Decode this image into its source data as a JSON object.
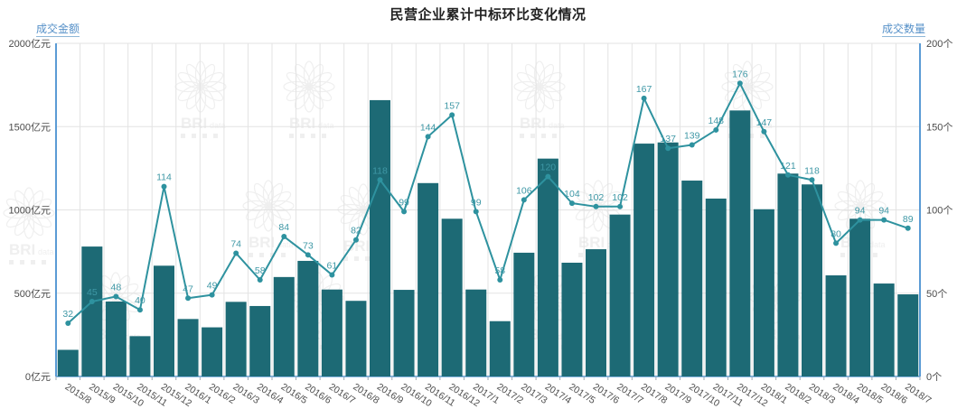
{
  "title": "民营企业累计中标环比变化情况",
  "watermark": {
    "brand": "BRI",
    "sub": "data"
  },
  "colors": {
    "bar": "#1d6a75",
    "line": "#2e929f",
    "point_label": "#3f98a6",
    "axis_line": "#5b9bd5",
    "grid_line": "#e3e3e3",
    "tick_text": "#4a4a4a",
    "title_text": "#222222",
    "watermark": "#e2e2e2"
  },
  "chart_data": {
    "type": "bar",
    "subtype": "combo-bar-line-dual-axis",
    "title": "民营企业累计中标环比变化情况",
    "grid": true,
    "categories": [
      "2015/8",
      "2015/9",
      "2015/10",
      "2015/11",
      "2015/12",
      "2016/1",
      "2016/2",
      "2016/3",
      "2016/4",
      "2016/5",
      "2016/6",
      "2016/7",
      "2016/8",
      "2016/9",
      "2016/10",
      "2016/11",
      "2016/12",
      "2017/1",
      "2017/2",
      "2017/3",
      "2017/4",
      "2017/5",
      "2017/6",
      "2017/7",
      "2017/8",
      "2017/9",
      "2017/10",
      "2017/11",
      "2017/12",
      "2018/1",
      "2018/2",
      "2018/3",
      "2018/4",
      "2018/5",
      "2018/6",
      "2018/7"
    ],
    "series": [
      {
        "name": "成交金额",
        "type": "bar",
        "axis": "left",
        "unit": "亿元",
        "values": [
          160,
          780,
          450,
          242,
          665,
          345,
          295,
          448,
          423,
          597,
          694,
          522,
          454,
          1659,
          520,
          1161,
          947,
          522,
          332,
          743,
          1308,
          683,
          764,
          972,
          1398,
          1405,
          1176,
          1068,
          1597,
          1004,
          1218,
          1153,
          607,
          947,
          558,
          493
        ],
        "values_are_estimated_from_pixels": true
      },
      {
        "name": "成交数量",
        "type": "line",
        "axis": "right",
        "unit": "个",
        "show_point_labels": true,
        "values": [
          32,
          45,
          48,
          40,
          114,
          47,
          49,
          74,
          58,
          84,
          73,
          61,
          82,
          118,
          99,
          144,
          157,
          99,
          58,
          106,
          120,
          104,
          102,
          102,
          167,
          137,
          139,
          148,
          176,
          147,
          121,
          118,
          80,
          94,
          94,
          89
        ]
      }
    ],
    "left_axis": {
      "name": "成交金额",
      "unit": "亿元",
      "min": 0,
      "max": 2000,
      "ticks": [
        0,
        500,
        1000,
        1500,
        2000
      ]
    },
    "right_axis": {
      "name": "成交数量",
      "unit": "个",
      "min": 0,
      "max": 200,
      "ticks": [
        0,
        50,
        100,
        150,
        200
      ]
    },
    "legend_position": "axis-names-top-corners",
    "x_label_rotation_deg": 33
  }
}
